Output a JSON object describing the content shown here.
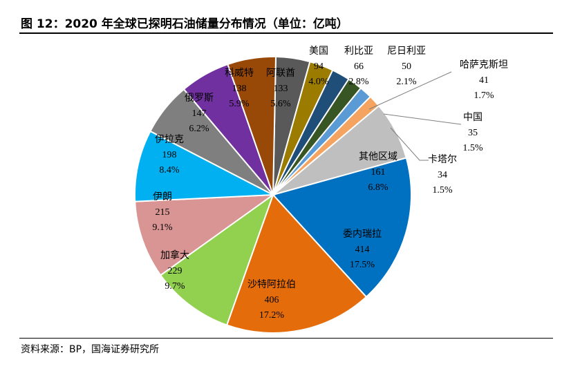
{
  "figure": {
    "title": "图 12：2020 年全球已探明石油储量分布情况（单位：亿吨）",
    "source": "资料来源：BP，国海证券研究所"
  },
  "chart_data": {
    "type": "pie",
    "unit": "亿吨",
    "slices": [
      {
        "label": "委内瑞拉",
        "value": 414,
        "percent": "17.5%",
        "color": "#0070c0"
      },
      {
        "label": "沙特阿拉伯",
        "value": 406,
        "percent": "17.2%",
        "color": "#e46c0a"
      },
      {
        "label": "加拿大",
        "value": 229,
        "percent": "9.7%",
        "color": "#92d050"
      },
      {
        "label": "伊朗",
        "value": 215,
        "percent": "9.1%",
        "color": "#d99594"
      },
      {
        "label": "伊拉克",
        "value": 198,
        "percent": "8.4%",
        "color": "#00b0f0"
      },
      {
        "label": "俄罗斯",
        "value": 147,
        "percent": "6.2%",
        "color": "#7f7f7f"
      },
      {
        "label": "科威特",
        "value": 138,
        "percent": "5.9%",
        "color": "#7030a0"
      },
      {
        "label": "阿联酋",
        "value": 133,
        "percent": "5.6%",
        "color": "#984807"
      },
      {
        "label": "美国",
        "value": 94,
        "percent": "4.0%",
        "color": "#595959"
      },
      {
        "label": "利比亚",
        "value": 66,
        "percent": "2.8%",
        "color": "#9c7c00"
      },
      {
        "label": "尼日利亚",
        "value": 50,
        "percent": "2.1%",
        "color": "#1f4e79"
      },
      {
        "label": "哈萨克斯坦",
        "value": 41,
        "percent": "1.7%",
        "color": "#375623"
      },
      {
        "label": "中国",
        "value": 35,
        "percent": "1.5%",
        "color": "#5b9bd5"
      },
      {
        "label": "卡塔尔",
        "value": 34,
        "percent": "1.5%",
        "color": "#f4a460"
      },
      {
        "label": "其他区域",
        "value": 161,
        "percent": "6.8%",
        "color": "#bfbfbf"
      }
    ]
  }
}
